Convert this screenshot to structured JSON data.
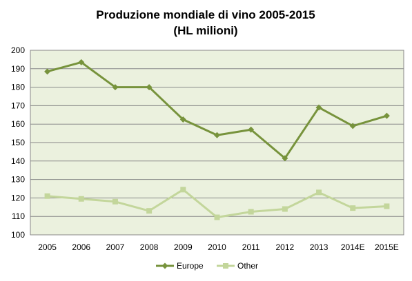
{
  "chart_data": {
    "type": "line",
    "title": "Produzione mondiale di vino 2005-2015",
    "subtitle": "(HL milioni)",
    "categories": [
      "2005",
      "2006",
      "2007",
      "2008",
      "2009",
      "2010",
      "2011",
      "2012",
      "2013",
      "2014E",
      "2015E"
    ],
    "series": [
      {
        "name": "Europe",
        "values": [
          188.5,
          193.5,
          180,
          180,
          162.5,
          154,
          157,
          141.5,
          169,
          159,
          164.5
        ],
        "color": "#77933C",
        "marker": "diamond"
      },
      {
        "name": "Other",
        "values": [
          121,
          119.5,
          118,
          113,
          124.5,
          109.5,
          112.5,
          114,
          123,
          114.5,
          115.5
        ],
        "color": "#C3D69B",
        "marker": "square"
      }
    ],
    "ylim": [
      100,
      200
    ],
    "yticks": [
      "100",
      "110",
      "120",
      "130",
      "140",
      "150",
      "160",
      "170",
      "180",
      "190",
      "200"
    ],
    "grid": true,
    "legend_position": "bottom",
    "plot_background": "#EBF1DE"
  }
}
